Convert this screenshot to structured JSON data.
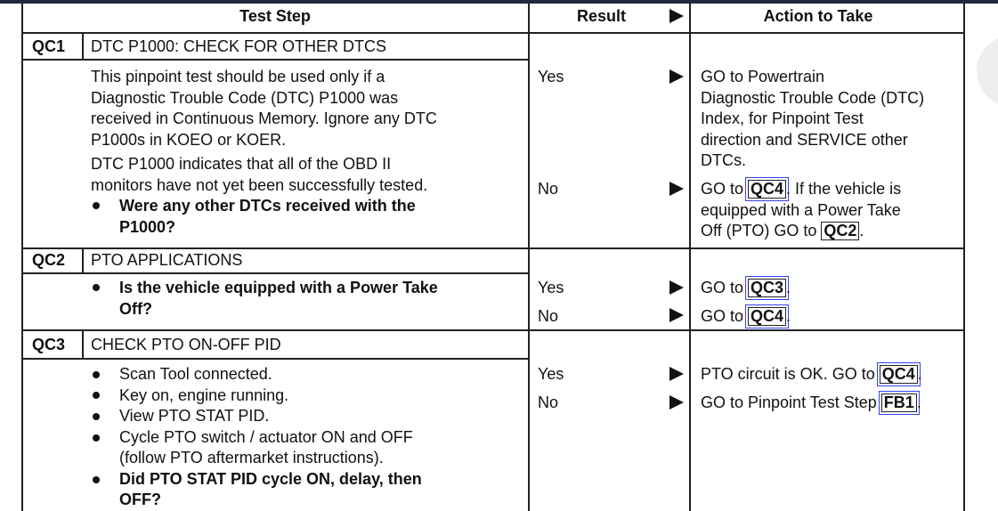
{
  "headers": {
    "test_step": "Test Step",
    "result": "Result",
    "action": "Action to Take"
  },
  "qc1": {
    "code": "QC1",
    "title": "DTC P1000: CHECK FOR OTHER DTCS",
    "body": [
      "This pinpoint test should be used only if a",
      "Diagnostic Trouble Code (DTC) P1000 was",
      "received in Continuous Memory. Ignore any DTC",
      "P1000s in KOEO or KOER.",
      "DTC P1000 indicates that all of the OBD II",
      "monitors have not yet been successfully tested."
    ],
    "question": [
      "Were any other DTCs received with the",
      "P1000?"
    ],
    "yes": "Yes",
    "no": "No",
    "yes_action": [
      "GO to Powertrain",
      "Diagnostic Trouble Code (DTC)",
      "Index, for Pinpoint Test",
      "direction and SERVICE other",
      "DTCs."
    ],
    "no_action": {
      "go": "GO to",
      "ref1": "QC4",
      "mid": ". If the vehicle is",
      "line2": "equipped with a Power Take",
      "line3": "Off (PTO) GO to",
      "ref2": "QC2",
      "end": "."
    }
  },
  "qc2": {
    "code": "QC2",
    "title": "PTO APPLICATIONS",
    "question": [
      "Is the vehicle equipped with a Power Take",
      "Off?"
    ],
    "yes": "Yes",
    "no": "No",
    "go": "GO to",
    "yes_ref": "QC3",
    "no_ref": "QC4",
    "end": "."
  },
  "qc3": {
    "code": "QC3",
    "title": "CHECK PTO ON-OFF PID",
    "bullets": [
      "Scan Tool connected.",
      "Key on, engine running.",
      "View PTO STAT PID.",
      "Cycle PTO switch / actuator ON and OFF"
    ],
    "bullet4_cont": "(follow PTO aftermarket instructions).",
    "question": [
      "Did PTO STAT PID cycle ON, delay, then",
      "OFF?"
    ],
    "yes": "Yes",
    "no": "No",
    "yes_action": "PTO circuit is OK. GO to",
    "yes_ref": "QC4",
    "no_action": "GO to Pinpoint Test Step",
    "no_ref": "FB1",
    "end": "."
  }
}
